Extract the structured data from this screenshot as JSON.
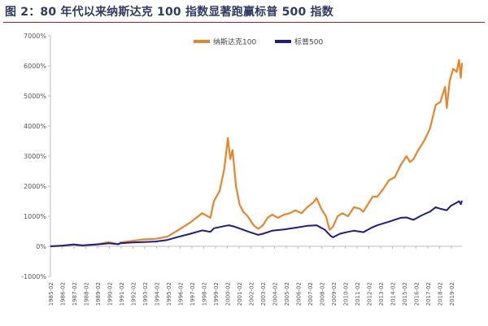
{
  "title": "图 2：80 年代以来纳斯达克 100 指数显著跑赢标普 500 指数",
  "chart_data": {
    "type": "line",
    "title": "图 2：80 年代以来纳斯达克 100 指数显著跑赢标普 500 指数",
    "xlabel": "",
    "ylabel": "",
    "ylim": [
      -1000,
      7000
    ],
    "yticks": [
      "-1000%",
      "0%",
      "1000%",
      "2000%",
      "3000%",
      "4000%",
      "5000%",
      "6000%",
      "7000%"
    ],
    "ytick_values": [
      -1000,
      0,
      1000,
      2000,
      3000,
      4000,
      5000,
      6000,
      7000
    ],
    "grid": false,
    "legend_position": "top-center",
    "x_start": "1985-02",
    "x_end": "2020-02",
    "x_tick_labels": [
      "1985-02",
      "1986-02",
      "1987-02",
      "1988-02",
      "1989-02",
      "1990-02",
      "1991-02",
      "1992-02",
      "1993-02",
      "1994-02",
      "1995-02",
      "1996-02",
      "1997-02",
      "1998-02",
      "1999-02",
      "2000-02",
      "2001-02",
      "2002-02",
      "2003-02",
      "2004-02",
      "2005-02",
      "2006-02",
      "2007-02",
      "2008-02",
      "2009-02",
      "2010-02",
      "2011-02",
      "2012-02",
      "2013-02",
      "2014-02",
      "2015-02",
      "2016-02",
      "2017-02",
      "2018-02",
      "2019-02"
    ],
    "series": [
      {
        "name": "纳斯达克100",
        "color": "#e8852b",
        "x": [
          1985.0,
          1986.0,
          1987.0,
          1987.8,
          1988.0,
          1989.0,
          1990.0,
          1990.8,
          1991.0,
          1992.0,
          1993.0,
          1994.0,
          1995.0,
          1996.0,
          1997.0,
          1998.0,
          1998.7,
          1999.0,
          1999.5,
          1999.9,
          2000.2,
          2000.4,
          2000.6,
          2000.9,
          2001.2,
          2001.5,
          2001.9,
          2002.4,
          2002.8,
          2003.2,
          2003.6,
          2004.0,
          2004.5,
          2005.0,
          2005.5,
          2006.0,
          2006.5,
          2007.0,
          2007.5,
          2007.8,
          2008.2,
          2008.6,
          2008.9,
          2009.2,
          2009.6,
          2010.0,
          2010.5,
          2011.0,
          2011.5,
          2011.8,
          2012.2,
          2012.6,
          2013.0,
          2013.5,
          2014.0,
          2014.5,
          2015.0,
          2015.5,
          2015.8,
          2016.1,
          2016.5,
          2017.0,
          2017.5,
          2018.0,
          2018.4,
          2018.8,
          2018.95,
          2019.2,
          2019.5,
          2019.8,
          2020.0,
          2020.15,
          2020.25
        ],
        "values": [
          0,
          15,
          60,
          20,
          35,
          70,
          140,
          70,
          130,
          180,
          230,
          250,
          320,
          550,
          800,
          1100,
          950,
          1500,
          1850,
          2600,
          3600,
          2900,
          3200,
          2000,
          1400,
          1150,
          1000,
          700,
          580,
          700,
          950,
          1050,
          950,
          1050,
          1100,
          1200,
          1100,
          1300,
          1450,
          1600,
          1250,
          1000,
          550,
          650,
          1000,
          1100,
          1000,
          1300,
          1250,
          1150,
          1400,
          1650,
          1650,
          1900,
          2200,
          2300,
          2700,
          3000,
          2800,
          2900,
          3200,
          3500,
          3900,
          4700,
          4800,
          5300,
          4600,
          5500,
          5900,
          5800,
          6200,
          5600,
          6100
        ]
      },
      {
        "name": "标普500",
        "color": "#1c1c8c",
        "x": [
          1985.0,
          1986.0,
          1987.0,
          1987.8,
          1988.0,
          1989.0,
          1990.0,
          1990.8,
          1991.0,
          1992.0,
          1993.0,
          1994.0,
          1995.0,
          1996.0,
          1997.0,
          1998.0,
          1998.7,
          1999.0,
          2000.0,
          2000.3,
          2000.8,
          2001.5,
          2002.0,
          2002.8,
          2003.2,
          2004.0,
          2005.0,
          2006.0,
          2007.0,
          2007.8,
          2008.5,
          2009.0,
          2009.2,
          2009.8,
          2010.5,
          2011.0,
          2011.8,
          2012.5,
          2013.0,
          2014.0,
          2015.0,
          2015.5,
          2016.1,
          2016.8,
          2017.5,
          2018.0,
          2018.4,
          2018.95,
          2019.3,
          2019.8,
          2020.0,
          2020.15,
          2020.25
        ],
        "values": [
          0,
          25,
          60,
          30,
          40,
          60,
          100,
          70,
          100,
          130,
          140,
          160,
          210,
          320,
          420,
          530,
          480,
          600,
          680,
          700,
          650,
          550,
          480,
          380,
          420,
          520,
          560,
          620,
          680,
          700,
          550,
          350,
          300,
          420,
          480,
          520,
          470,
          620,
          700,
          820,
          950,
          960,
          880,
          1030,
          1150,
          1300,
          1250,
          1200,
          1350,
          1450,
          1500,
          1400,
          1520
        ]
      }
    ]
  }
}
